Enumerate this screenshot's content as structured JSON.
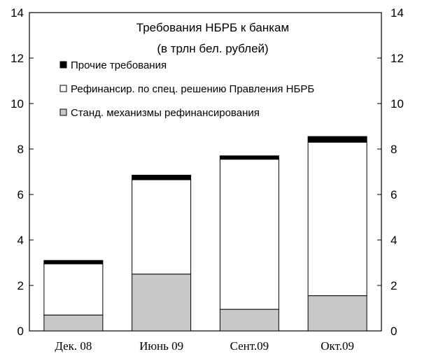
{
  "chart_data": {
    "type": "bar",
    "stacked": true,
    "title": "Требования НБРБ к банкам",
    "subtitle": "(в трлн бел. рублей)",
    "categories": [
      "Дек. 08",
      "Июнь 09",
      "Сент.09",
      "Окт.09"
    ],
    "series": [
      {
        "name": "Станд. механизмы рефинансирования",
        "values": [
          0.7,
          2.5,
          0.95,
          1.55
        ],
        "color": "#c8c8c8"
      },
      {
        "name": "Рефинансир. по спец. решению Правления НБРБ",
        "values": [
          2.25,
          4.15,
          6.6,
          6.75
        ],
        "color": "#ffffff"
      },
      {
        "name": "Прочие требования",
        "values": [
          0.15,
          0.2,
          0.15,
          0.25
        ],
        "color": "#000000"
      }
    ],
    "legend_order": [
      2,
      1,
      0
    ],
    "ylim": [
      0,
      14
    ],
    "yticks": [
      0,
      2,
      4,
      6,
      8,
      10,
      12,
      14
    ],
    "secondary_y_axis": true,
    "grid": false,
    "legend_position": "top-left inside"
  }
}
